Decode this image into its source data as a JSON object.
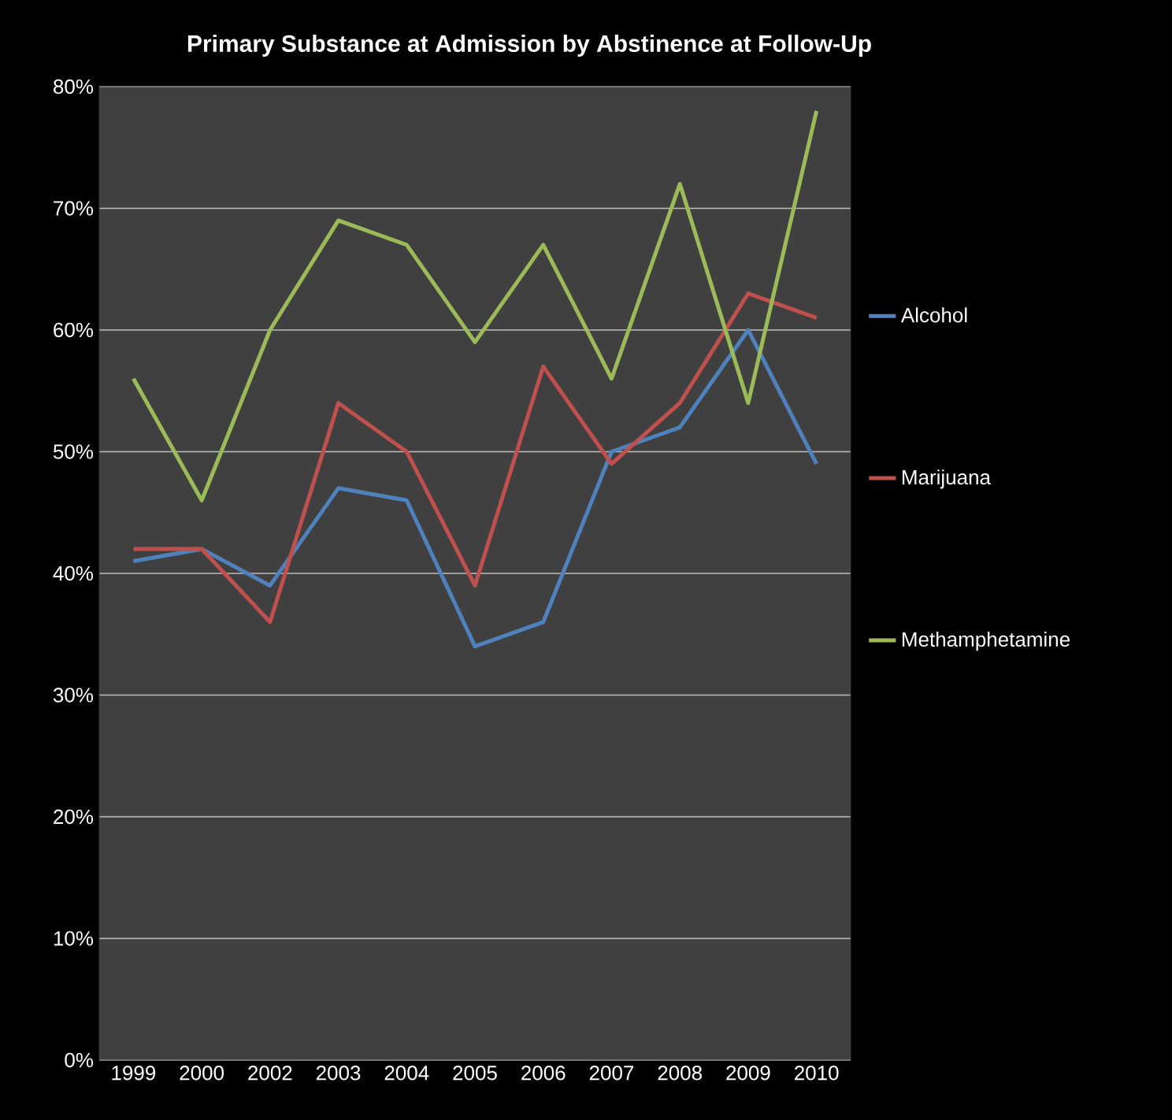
{
  "chart_data": {
    "type": "line",
    "title": "Primary Substance at Admission by Abstinence at Follow-Up",
    "categories": [
      "1999",
      "2000",
      "2002",
      "2003",
      "2004",
      "2005",
      "2006",
      "2007",
      "2008",
      "2009",
      "2010"
    ],
    "series": [
      {
        "name": "Alcohol",
        "color": "#4f81bd",
        "values": [
          41,
          42,
          39,
          47,
          46,
          34,
          36,
          50,
          52,
          60,
          49
        ]
      },
      {
        "name": "Marijuana",
        "color": "#c0504d",
        "values": [
          42,
          42,
          36,
          54,
          50,
          39,
          57,
          49,
          54,
          63,
          61
        ]
      },
      {
        "name": "Methamphetamine",
        "color": "#9bbb59",
        "values": [
          56,
          46,
          60,
          69,
          67,
          59,
          67,
          56,
          72,
          54,
          78
        ]
      }
    ],
    "ylim": [
      0,
      80
    ],
    "yticks": [
      {
        "value": 0,
        "label": "0%"
      },
      {
        "value": 10,
        "label": "10%"
      },
      {
        "value": 20,
        "label": "20%"
      },
      {
        "value": 30,
        "label": "30%"
      },
      {
        "value": 40,
        "label": "40%"
      },
      {
        "value": 50,
        "label": "50%"
      },
      {
        "value": 60,
        "label": "60%"
      },
      {
        "value": 70,
        "label": "70%"
      },
      {
        "value": 80,
        "label": "80%"
      }
    ],
    "grid": "y",
    "legend": "right",
    "marker": "none",
    "line_style": "solid"
  }
}
